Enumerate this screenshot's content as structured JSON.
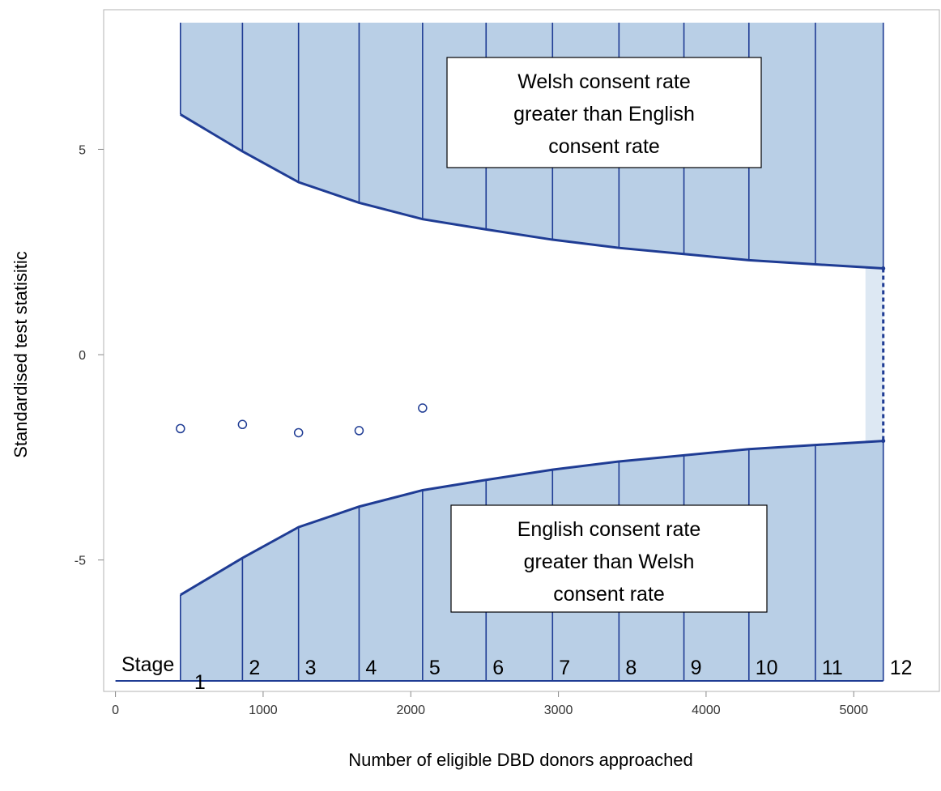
{
  "chart_data": {
    "type": "scatter",
    "title": "",
    "xlabel": "Number of eligible DBD donors approached",
    "ylabel": "Standardised test statisitic",
    "xlim": [
      -80,
      5580
    ],
    "ylim": [
      -8.2,
      8.4
    ],
    "x_ticks": [
      0,
      1000,
      2000,
      3000,
      4000,
      5000
    ],
    "y_ticks": [
      -5,
      0,
      5
    ],
    "grid": false,
    "legend": "none",
    "stage_x": [
      440,
      860,
      1240,
      1650,
      2080,
      2510,
      2960,
      3410,
      3850,
      4290,
      4740,
      5200
    ],
    "upper_boundary": [
      5.85,
      4.95,
      4.2,
      3.7,
      3.3,
      3.05,
      2.8,
      2.6,
      2.45,
      2.3,
      2.2,
      2.1
    ],
    "lower_boundary": [
      -5.85,
      -4.95,
      -4.2,
      -3.7,
      -3.3,
      -3.05,
      -2.8,
      -2.6,
      -2.45,
      -2.3,
      -2.2,
      -2.1
    ],
    "observed": {
      "x": [
        440,
        860,
        1240,
        1650,
        2080
      ],
      "y": [
        -1.8,
        -1.7,
        -1.9,
        -1.85,
        -1.3
      ]
    },
    "stage_word": "Stage",
    "stage_labels": [
      "1",
      "2",
      "3",
      "4",
      "5",
      "6",
      "7",
      "8",
      "9",
      "10",
      "11",
      "12"
    ],
    "annotations": [
      {
        "lines": [
          "Welsh consent rate",
          "greater than English",
          "consent rate"
        ]
      },
      {
        "lines": [
          "English consent rate",
          "greater than Welsh",
          "consent rate"
        ]
      }
    ],
    "colors": {
      "fill": "#b9cfe6",
      "fill_light": "#dde8f3",
      "line": "#1f3c94",
      "axis": "#b3b3b3"
    }
  }
}
